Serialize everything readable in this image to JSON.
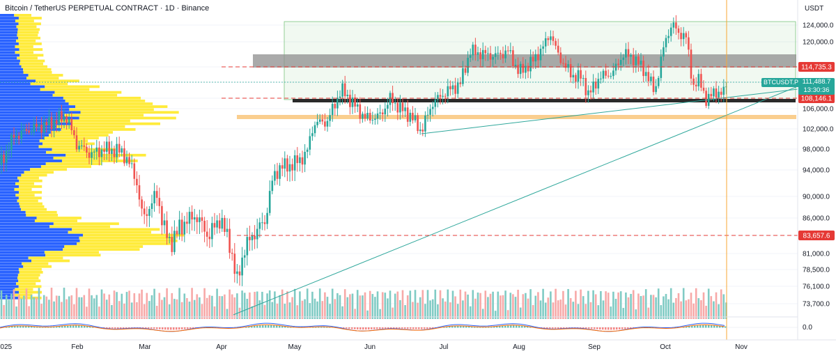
{
  "header": {
    "title": "Bitcoin / TetherUS PERPETUAL CONTRACT · 1D · Binance",
    "currency": "USDT"
  },
  "chart_data": {
    "type": "candlestick",
    "symbol": "BTCUSDT.P",
    "exchange": "Binance",
    "interval": "1D",
    "y_axis": {
      "ticks": [
        124000,
        120000,
        114735.3,
        111488.7,
        108146.1,
        106000,
        102000,
        98000,
        94000,
        90000,
        86000,
        83657.6,
        81000,
        78500,
        76100,
        73700
      ],
      "tick_labels": [
        "124,000.0",
        "120,000.0",
        "114,735.3",
        "111,488.7",
        "108,146.1",
        "106,000.0",
        "102,000.0",
        "98,000.0",
        "94,000.0",
        "90,000.0",
        "86,000.0",
        "83,657.6",
        "81,000.0",
        "78,500.0",
        "76,100.0",
        "73,700.0"
      ],
      "range": [
        73700,
        124000
      ]
    },
    "x_axis": {
      "labels": [
        "2025",
        "Feb",
        "Mar",
        "Apr",
        "May",
        "Jun",
        "Jul",
        "Aug",
        "Sep",
        "Oct",
        "Nov"
      ]
    },
    "price_levels": [
      {
        "value": 114735.3,
        "label": "114,735.3",
        "style": "dashed",
        "color": "#e53935"
      },
      {
        "value": 108146.1,
        "label": "108,146.1",
        "style": "dashed",
        "color": "#e53935"
      },
      {
        "value": 83657.6,
        "label": "83,657.6",
        "style": "dashed",
        "color": "#e53935"
      }
    ],
    "current_price": {
      "value": 111488.7,
      "label": "111,488.7",
      "countdown": "13:30:36"
    },
    "indicator": {
      "name": "MACD",
      "zero_label": "0.0"
    },
    "colors": {
      "up": "#26a69a",
      "down": "#ef5350",
      "volume_up": "#80cbc4",
      "volume_down": "#f7a9a8",
      "profile_buy": "#2962ff",
      "profile_sell": "#ffeb3b",
      "zone_gray": "#8d8d8d",
      "zone_orange": "#f9c57a",
      "trend": "#2ea79b",
      "vertical": "#f7a733"
    }
  }
}
